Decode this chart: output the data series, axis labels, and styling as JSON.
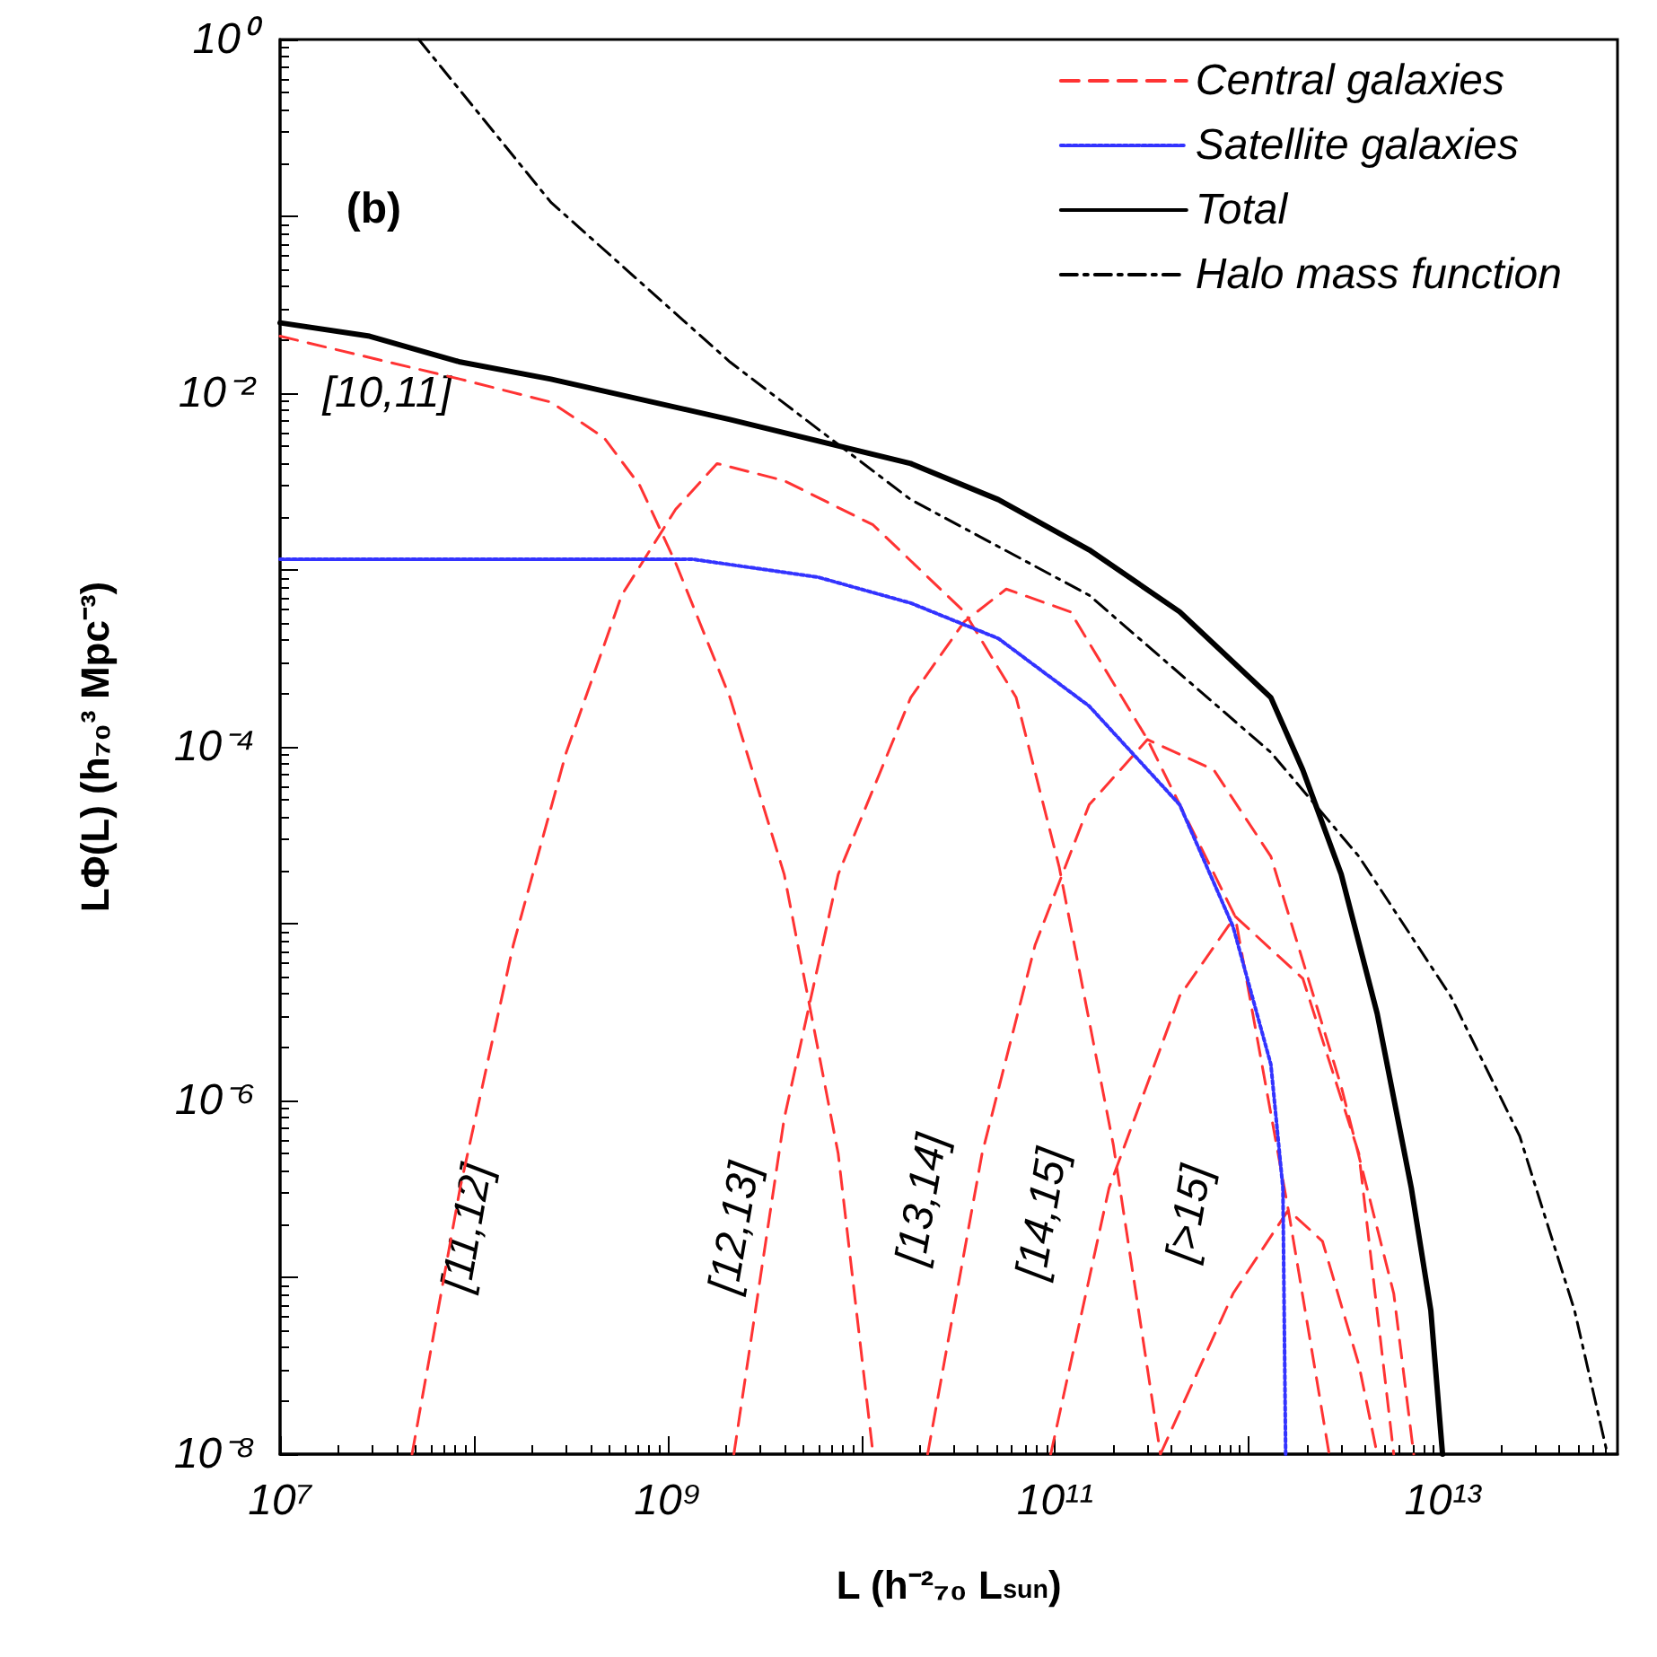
{
  "chart_data": {
    "type": "line",
    "xlabel": "L (h⁻²₇₀ L$_{sun}$)",
    "ylabel": "LΦ(L) (h₇₀³ Mpc⁻³)",
    "log": "xy",
    "grid": false,
    "legend": "top right",
    "marker": "none",
    "xlim": [
      10000000.0,
      80000000000000.0
    ],
    "xticks": [
      {
        "value": 10000000.0,
        "label": "10⁷"
      },
      {
        "value": 100000000.0,
        "label": null
      },
      {
        "value": 1000000000.0,
        "label": "10⁹"
      },
      {
        "value": 10000000000.0,
        "label": null
      },
      {
        "value": 100000000000.0,
        "label": "10¹¹"
      },
      {
        "value": 1000000000000.0,
        "label": null
      },
      {
        "value": 10000000000000.0,
        "label": "10¹³"
      }
    ],
    "ylim": [
      1e-08,
      1
    ],
    "yticks": [
      {
        "value": 1e-08,
        "label": "10⁻⁸"
      },
      {
        "value": 1e-07,
        "label": null
      },
      {
        "value": 1e-06,
        "label": "10⁻⁶"
      },
      {
        "value": 1e-05,
        "label": null
      },
      {
        "value": 0.0001,
        "label": "10⁻⁴"
      },
      {
        "value": 0.001,
        "label": null
      },
      {
        "value": 0.01,
        "label": "10⁻²"
      },
      {
        "value": 0.1,
        "label": null
      },
      {
        "value": 1,
        "label": "10⁰"
      }
    ],
    "annotations": [
      "(b)",
      "[10,11]",
      "[11,12]",
      "[12,13]",
      "[13,14]",
      "[14,15]",
      "[>15]"
    ],
    "series": [
      {
        "name": "Central galaxies",
        "color": "#ff3333",
        "line_style": "dashed",
        "x": [
          10000000.0,
          85000000.0,
          250000000.0,
          470000000.0,
          720000000.0,
          1100000000.0,
          2100000000.0,
          4000000000.0,
          7600000000.0,
          11500000000.0,
          null,
          48000000.0,
          85000000.0,
          160000000.0,
          300000000.0,
          580000000.0,
          1100000000.0,
          1800000000.0,
          4000000000.0,
          11500000000.0,
          34000000000.0,
          63000000000.0,
          105000000000.0,
          200000000000.0,
          350000000000.0,
          null,
          2200000000.0,
          4000000000.0,
          7600000000.0,
          18000000000.0,
          34000000000.0,
          56000000000.0,
          120000000000.0,
          300000000000.0,
          850000000000.0,
          1600000000000.0,
          2600000000000.0,
          null,
          22000000000.0,
          42000000000.0,
          79000000000.0,
          150000000000.0,
          300000000000.0,
          660000000000.0,
          1300000000000.0,
          3000000000000.0,
          5600000000000.0,
          7100000000000.0,
          null,
          95000000000.0,
          190000000000.0,
          440000000000.0,
          850000000000.0,
          1900000000000.0,
          3700000000000.0,
          5600000000000.0,
          null,
          350000000000.0,
          830000000000.0,
          1600000000000.0,
          2400000000000.0,
          3700000000000.0,
          4600000000000.0
        ],
        "values": [
          0.021,
          0.012,
          0.0089,
          0.0056,
          0.003,
          0.0011,
          0.00019,
          1.9e-05,
          5e-07,
          1e-08,
          null,
          1e-08,
          3.2e-07,
          7.6e-06,
          9.3e-05,
          0.00072,
          0.0022,
          0.004,
          0.0032,
          0.0018,
          0.00058,
          0.00019,
          2.1e-05,
          5.6e-07,
          1e-08,
          null,
          1e-08,
          7.9e-07,
          1.9e-05,
          0.00019,
          0.00051,
          0.00078,
          0.00058,
          0.00011,
          1.1e-05,
          2.4e-07,
          1e-08,
          null,
          1e-08,
          5e-07,
          7.6e-06,
          4.7e-05,
          0.00011,
          7.4e-05,
          2.4e-05,
          1.2e-06,
          8.1e-08,
          1e-08,
          null,
          1e-08,
          3.2e-07,
          3.9e-06,
          1.1e-05,
          4.9e-06,
          5e-07,
          1e-08,
          null,
          1e-08,
          8.1e-08,
          2.4e-07,
          1.6e-07,
          3.2e-08,
          1e-08
        ]
      },
      {
        "name": "Satellite galaxies",
        "color": "#3333ff",
        "line_style": "dotted",
        "x": [
          10000000.0,
          1350000000.0,
          6000000000.0,
          18000000000.0,
          51000000000.0,
          150000000000.0,
          440000000000.0,
          830000000000.0,
          1300000000000.0,
          1500000000000.0,
          1550000000000.0
        ],
        "values": [
          0.00115,
          0.00115,
          0.00091,
          0.00065,
          0.00041,
          0.00017,
          4.7e-05,
          9.6e-06,
          1.6e-06,
          3.2e-07,
          1e-08
        ]
      },
      {
        "name": "Total",
        "color": "#000000",
        "line_style": "solid",
        "x": [
          10000000.0,
          29000000.0,
          85000000.0,
          250000000.0,
          2100000000.0,
          18000000000.0,
          51000000000.0,
          150000000000.0,
          440000000000.0,
          1300000000000.0,
          1900000000000.0,
          3000000000000.0,
          4600000000000.0,
          6900000000000.0,
          8700000000000.0,
          10000000000000.0
        ],
        "values": [
          0.025,
          0.021,
          0.015,
          0.012,
          0.0071,
          0.004,
          0.0025,
          0.0013,
          0.00058,
          0.00019,
          7.4e-05,
          1.9e-05,
          3.1e-06,
          3.2e-07,
          6.5e-08,
          1e-08
        ]
      },
      {
        "name": "Halo mass function",
        "color": "#000000",
        "line_style": "dashdot",
        "x": [
          52000000.0,
          250000000.0,
          2100000000.0,
          18000000000.0,
          150000000000.0,
          1300000000000.0,
          3700000000000.0,
          11000000000000.0,
          25000000000000.0,
          48000000000000.0,
          71000000000000.0
        ],
        "values": [
          1.0,
          0.12,
          0.015,
          0.0025,
          0.00072,
          9.3e-05,
          2.4e-05,
          3.9e-06,
          6.3e-07,
          6.5e-08,
          1e-08
        ]
      }
    ]
  }
}
